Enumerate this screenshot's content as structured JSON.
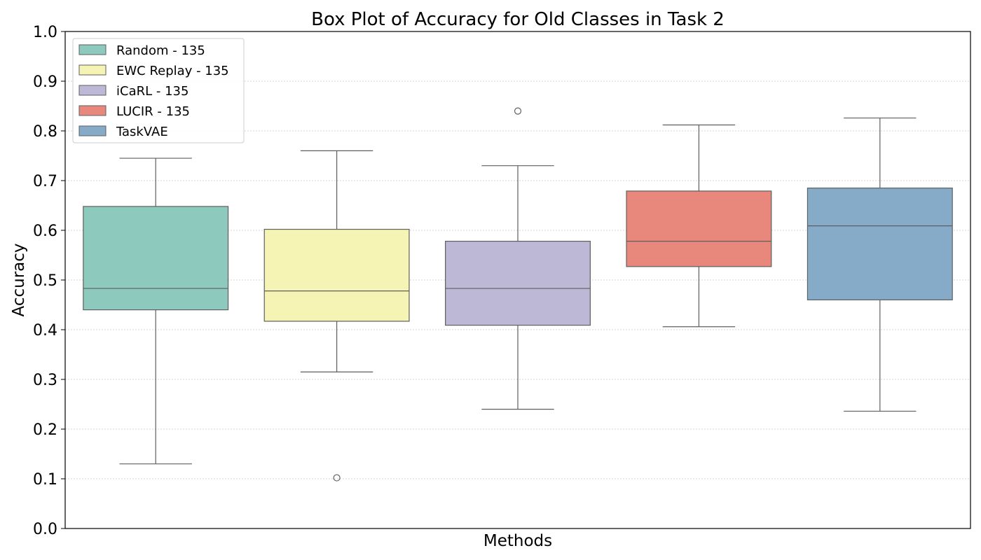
{
  "chart_data": {
    "type": "box",
    "title": "Box Plot of Accuracy for Old Classes in Task 2",
    "xlabel": "Methods",
    "ylabel": "Accuracy",
    "ylim": [
      0.0,
      1.0
    ],
    "yticks": [
      "0.0",
      "0.1",
      "0.2",
      "0.3",
      "0.4",
      "0.5",
      "0.6",
      "0.7",
      "0.8",
      "0.9",
      "1.0"
    ],
    "grid": "horizontal dotted",
    "legend_position": "top-left",
    "series": [
      {
        "name": "Random - 135",
        "color": "#8dc9bd",
        "whisker_low": 0.13,
        "q1": 0.44,
        "median": 0.483,
        "q3": 0.648,
        "whisker_high": 0.745,
        "outliers": []
      },
      {
        "name": "EWC Replay - 135",
        "color": "#f6f4b5",
        "whisker_low": 0.315,
        "q1": 0.417,
        "median": 0.478,
        "q3": 0.602,
        "whisker_high": 0.76,
        "outliers": [
          0.102
        ]
      },
      {
        "name": "iCaRL - 135",
        "color": "#bcb8d5",
        "whisker_low": 0.24,
        "q1": 0.409,
        "median": 0.483,
        "q3": 0.578,
        "whisker_high": 0.73,
        "outliers": [
          0.84
        ]
      },
      {
        "name": "LUCIR - 135",
        "color": "#e8887c",
        "whisker_low": 0.406,
        "q1": 0.527,
        "median": 0.578,
        "q3": 0.679,
        "whisker_high": 0.812,
        "outliers": []
      },
      {
        "name": "TaskVAE",
        "color": "#85abc8",
        "whisker_low": 0.236,
        "q1": 0.46,
        "median": 0.609,
        "q3": 0.685,
        "whisker_high": 0.826,
        "outliers": []
      }
    ]
  }
}
